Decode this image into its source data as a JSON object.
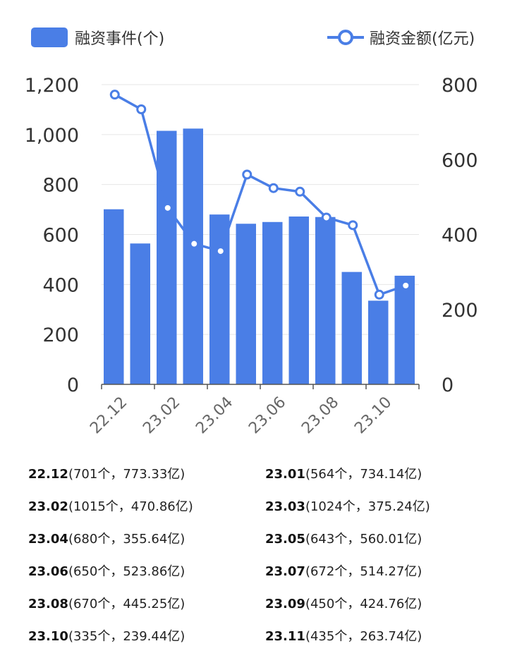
{
  "chart_data": {
    "type": "bar+line",
    "categories": [
      "22.12",
      "23.01",
      "23.02",
      "23.03",
      "23.04",
      "23.05",
      "23.06",
      "23.07",
      "23.08",
      "23.09",
      "23.10",
      "23.11"
    ],
    "xtick_labels": [
      "22.12",
      "23.02",
      "23.04",
      "23.06",
      "23.08",
      "23.10"
    ],
    "series": [
      {
        "name": "融资事件(个)",
        "type": "bar",
        "axis": "left",
        "color": "#4a7ee6",
        "values": [
          701,
          564,
          1015,
          1024,
          680,
          643,
          650,
          672,
          670,
          450,
          335,
          435
        ]
      },
      {
        "name": "融资金额(亿元)",
        "type": "line",
        "axis": "right",
        "color": "#4a7ee6",
        "values": [
          773.33,
          734.14,
          470.86,
          375.24,
          355.64,
          560.01,
          523.86,
          514.27,
          445.25,
          424.76,
          239.44,
          263.74
        ]
      }
    ],
    "y_left": {
      "min": 0,
      "max": 1200,
      "ticks": [
        "0",
        "200",
        "400",
        "600",
        "800",
        "1,000",
        "1,200"
      ]
    },
    "y_right": {
      "min": 0,
      "max": 800,
      "ticks": [
        "0",
        "200",
        "400",
        "600",
        "800"
      ]
    },
    "grid": true,
    "legend_position": "top"
  },
  "summary": [
    {
      "month": "22.12",
      "detail": "(701个，773.33亿)"
    },
    {
      "month": "23.01",
      "detail": "(564个，734.14亿)"
    },
    {
      "month": "23.02",
      "detail": "(1015个，470.86亿)"
    },
    {
      "month": "23.03",
      "detail": "(1024个，375.24亿)"
    },
    {
      "month": "23.04",
      "detail": "(680个，355.64亿)"
    },
    {
      "month": "23.05",
      "detail": "(643个，560.01亿)"
    },
    {
      "month": "23.06",
      "detail": "(650个，523.86亿)"
    },
    {
      "month": "23.07",
      "detail": "(672个，514.27亿)"
    },
    {
      "month": "23.08",
      "detail": "(670个，445.25亿)"
    },
    {
      "month": "23.09",
      "detail": "(450个，424.76亿)"
    },
    {
      "month": "23.10",
      "detail": "(335个，239.44亿)"
    },
    {
      "month": "23.11",
      "detail": "(435个，263.74亿)"
    }
  ]
}
